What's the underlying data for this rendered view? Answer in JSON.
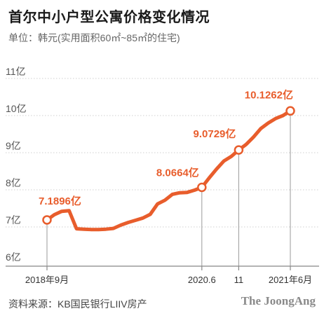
{
  "title": "首尔中小户型公寓价格变化情况",
  "subtitle": "单位：韩元(实用面积60㎡~85㎡的住宅)",
  "source": "资料来源：KB国民银行LIIV房产",
  "logo": "The JoongAng",
  "colors": {
    "line": "#e85d2c",
    "grid": "#cfcfcf",
    "marker_fill": "#ffffff"
  },
  "chart_data": {
    "type": "line",
    "title": "首尔中小户型公寓价格变化情况",
    "ylabel": "",
    "ylim": [
      6,
      11
    ],
    "yticks": [
      {
        "value": 6,
        "label": "6亿"
      },
      {
        "value": 7,
        "label": "7亿"
      },
      {
        "value": 8,
        "label": "8亿"
      },
      {
        "value": 9,
        "label": "9亿"
      },
      {
        "value": 10,
        "label": "10亿"
      },
      {
        "value": 11,
        "label": "11亿"
      }
    ],
    "x_range": [
      "2018-09",
      "2021-06"
    ],
    "xticks": [
      {
        "x": "2018-09",
        "label": "2018年9月"
      },
      {
        "x": "2020-06",
        "label": "2020.6"
      },
      {
        "x": "2020-11",
        "label": "11"
      },
      {
        "x": "2021-06",
        "label": "2021年6月"
      }
    ],
    "series": [
      {
        "points": [
          {
            "x": "2018-09",
            "y": 7.1896
          },
          {
            "x": "2018-10",
            "y": 7.33
          },
          {
            "x": "2018-11",
            "y": 7.42
          },
          {
            "x": "2018-12",
            "y": 7.44
          },
          {
            "x": "2019-01",
            "y": 6.95
          },
          {
            "x": "2019-02",
            "y": 6.94
          },
          {
            "x": "2019-03",
            "y": 6.93
          },
          {
            "x": "2019-04",
            "y": 6.93
          },
          {
            "x": "2019-05",
            "y": 6.94
          },
          {
            "x": "2019-06",
            "y": 6.96
          },
          {
            "x": "2019-07",
            "y": 7.05
          },
          {
            "x": "2019-08",
            "y": 7.12
          },
          {
            "x": "2019-09",
            "y": 7.18
          },
          {
            "x": "2019-10",
            "y": 7.24
          },
          {
            "x": "2019-11",
            "y": 7.34
          },
          {
            "x": "2019-12",
            "y": 7.62
          },
          {
            "x": "2020-01",
            "y": 7.72
          },
          {
            "x": "2020-02",
            "y": 7.88
          },
          {
            "x": "2020-03",
            "y": 7.92
          },
          {
            "x": "2020-04",
            "y": 7.93
          },
          {
            "x": "2020-05",
            "y": 7.99
          },
          {
            "x": "2020-06",
            "y": 8.0664
          },
          {
            "x": "2020-07",
            "y": 8.32
          },
          {
            "x": "2020-08",
            "y": 8.56
          },
          {
            "x": "2020-09",
            "y": 8.78
          },
          {
            "x": "2020-10",
            "y": 8.9
          },
          {
            "x": "2020-11",
            "y": 9.0729
          },
          {
            "x": "2020-12",
            "y": 9.22
          },
          {
            "x": "2021-01",
            "y": 9.42
          },
          {
            "x": "2021-02",
            "y": 9.65
          },
          {
            "x": "2021-03",
            "y": 9.8
          },
          {
            "x": "2021-04",
            "y": 9.92
          },
          {
            "x": "2021-05",
            "y": 10.0
          },
          {
            "x": "2021-06",
            "y": 10.1262
          }
        ]
      }
    ],
    "annotations": [
      {
        "x": "2018-09",
        "y": 7.1896,
        "label": "7.1896亿"
      },
      {
        "x": "2020-06",
        "y": 8.0664,
        "label": "8.0664亿"
      },
      {
        "x": "2020-11",
        "y": 9.0729,
        "label": "9.0729亿"
      },
      {
        "x": "2021-06",
        "y": 10.1262,
        "label": "10.1262亿"
      }
    ],
    "grid": true
  }
}
